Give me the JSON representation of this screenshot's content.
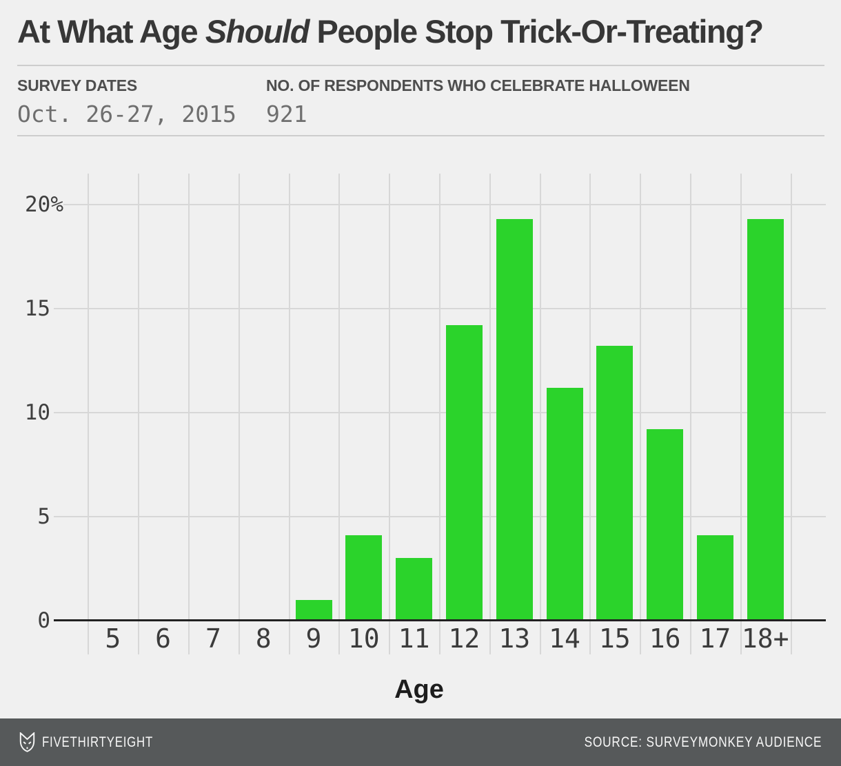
{
  "title": {
    "pre": "At What Age ",
    "italic": "Should",
    "post": " People Stop Trick-Or-Treating?"
  },
  "header": {
    "survey_dates": {
      "label": "SURVEY DATES",
      "value": "Oct. 26-27, 2015"
    },
    "respondents": {
      "label": "NO. OF RESPONDENTS WHO CELEBRATE HALLOWEEN",
      "value": "921"
    }
  },
  "chart_data": {
    "type": "bar",
    "title": "At What Age Should People Stop Trick-Or-Treating?",
    "categories": [
      "5",
      "6",
      "7",
      "8",
      "9",
      "10",
      "11",
      "12",
      "13",
      "14",
      "15",
      "16",
      "17",
      "18+"
    ],
    "values": [
      0,
      0,
      0,
      0,
      1.0,
      4.1,
      3.0,
      14.2,
      19.3,
      11.2,
      13.2,
      9.2,
      4.1,
      19.3
    ],
    "xlabel": "Age",
    "ylabel": "",
    "ylim": [
      0,
      21.5
    ],
    "yticks": [
      {
        "value": 20,
        "label": "20%"
      },
      {
        "value": 15,
        "label": "15"
      },
      {
        "value": 10,
        "label": "10"
      },
      {
        "value": 5,
        "label": "5"
      },
      {
        "value": 0,
        "label": "0"
      }
    ],
    "grid": true,
    "legend": "none",
    "bar_color": "#2bd32b"
  },
  "footer": {
    "brand": "FIVETHIRTYEIGHT",
    "source": "SOURCE: SURVEYMONKEY AUDIENCE"
  },
  "colors": {
    "background": "#f0f0f0",
    "bar": "#2bd32b",
    "gridline": "#d7d7d7",
    "axis_line": "#212121",
    "footer_background": "#56595a",
    "footer_text": "#f7f7f7"
  }
}
